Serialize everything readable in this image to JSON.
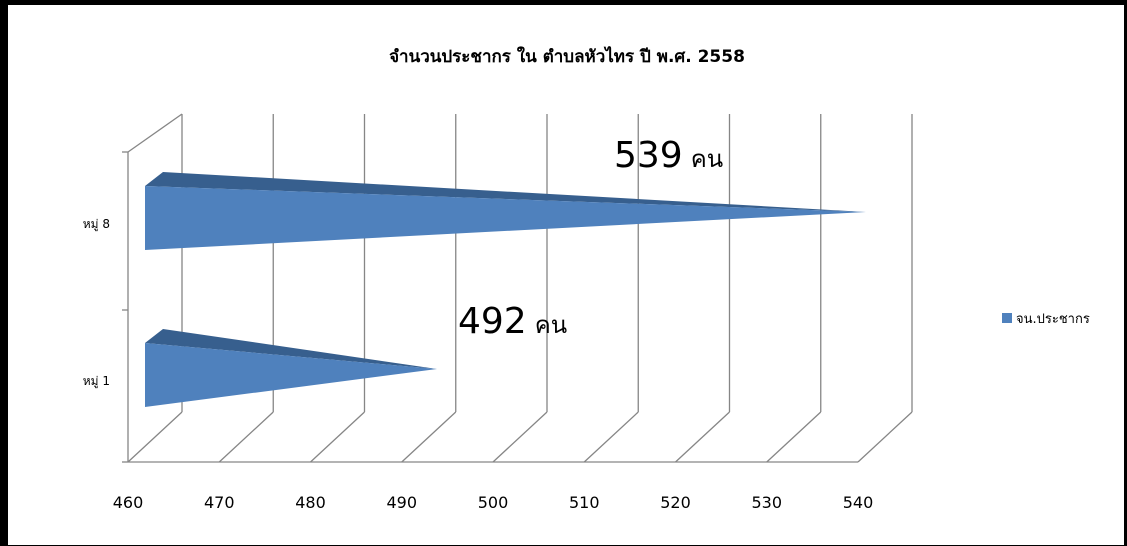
{
  "chart_data": {
    "type": "bar",
    "orientation": "horizontal",
    "style": "3d-cone",
    "title": "จำนวนประชากร ใน ตำบลหัวไทร  ปี พ.ศ. 2558",
    "categories": [
      "หมู่ 1",
      "หมู่ 8"
    ],
    "series": [
      {
        "name": "จน.ประชากร",
        "values": [
          492,
          539
        ],
        "color": "#4f81bd"
      }
    ],
    "data_labels": [
      {
        "value": "492",
        "unit": "คน"
      },
      {
        "value": "539",
        "unit": "คน"
      }
    ],
    "xlim": [
      460,
      540
    ],
    "xticks": [
      "460",
      "470",
      "480",
      "490",
      "500",
      "510",
      "520",
      "530",
      "540"
    ],
    "xlabel": "",
    "ylabel": "",
    "grid": true,
    "legend_position": "right"
  }
}
